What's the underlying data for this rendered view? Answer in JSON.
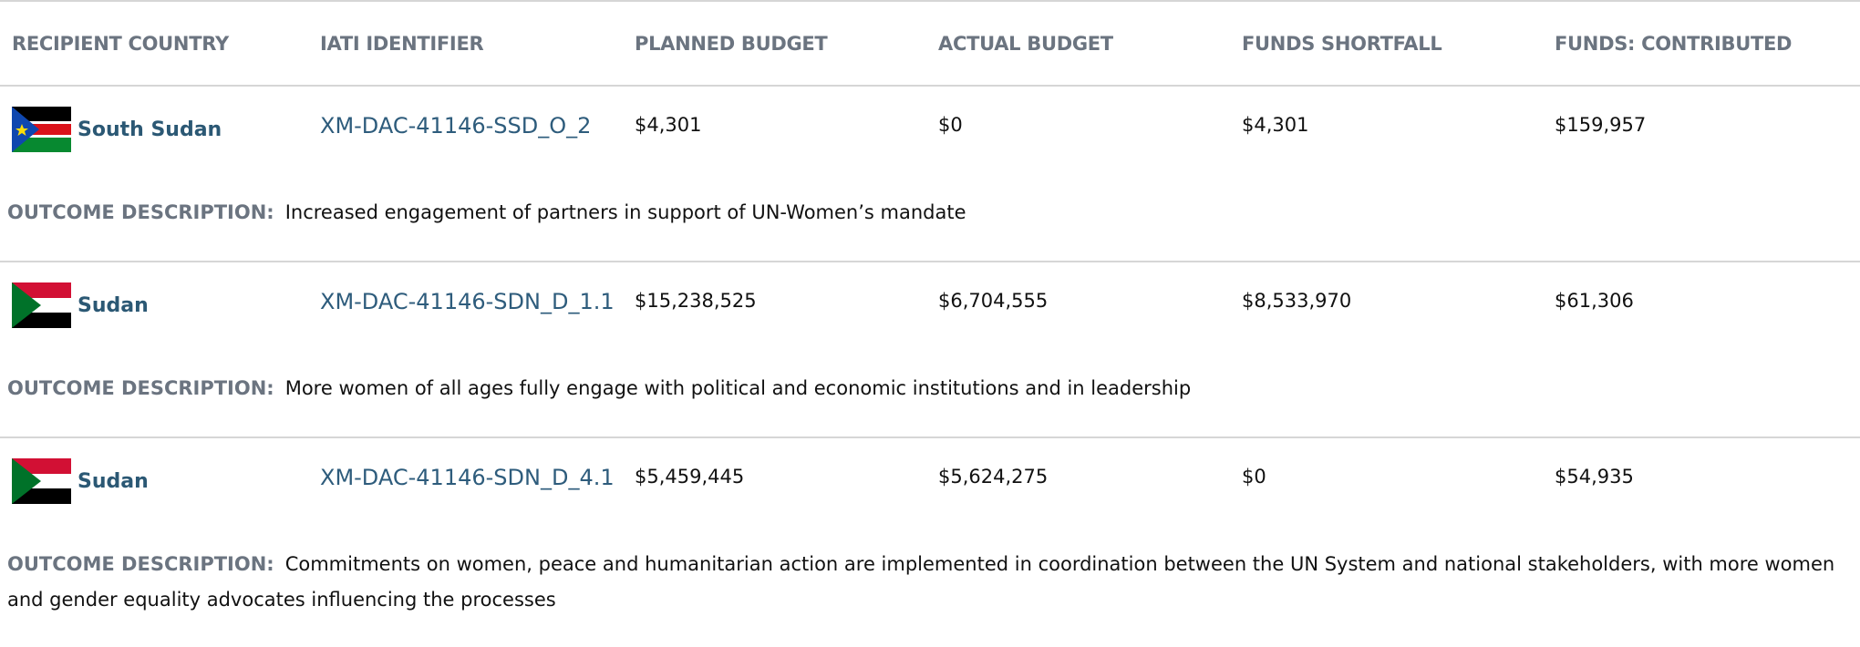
{
  "table": {
    "headers": [
      "RECIPIENT COUNTRY",
      "IATI IDENTIFIER",
      "PLANNED BUDGET",
      "ACTUAL BUDGET",
      "FUNDS SHORTFALL",
      "FUNDS: CONTRIBUTED"
    ],
    "outcome_label": "OUTCOME DESCRIPTION:",
    "rows": [
      {
        "country": "South Sudan",
        "identifier": "XM-DAC-41146-SSD_O_2",
        "planned": "$4,301",
        "actual": "$0",
        "shortfall": "$4,301",
        "contributed": "$159,957",
        "outcome": "Increased engagement of partners in support of UN-Women’s mandate"
      },
      {
        "country": "Sudan",
        "identifier": "XM-DAC-41146-SDN_D_1.1",
        "planned": "$15,238,525",
        "actual": "$6,704,555",
        "shortfall": "$8,533,970",
        "contributed": "$61,306",
        "outcome": "More women of all ages fully engage with political and economic institutions and in leadership"
      },
      {
        "country": "Sudan",
        "identifier": "XM-DAC-41146-SDN_D_4.1",
        "planned": "$5,459,445",
        "actual": "$5,624,275",
        "shortfall": "$0",
        "contributed": "$54,935",
        "outcome": "Commitments on women, peace and humanitarian action are implemented in coordination between the UN System and national stakeholders, with more women and gender equality advocates influencing the processes"
      }
    ]
  }
}
